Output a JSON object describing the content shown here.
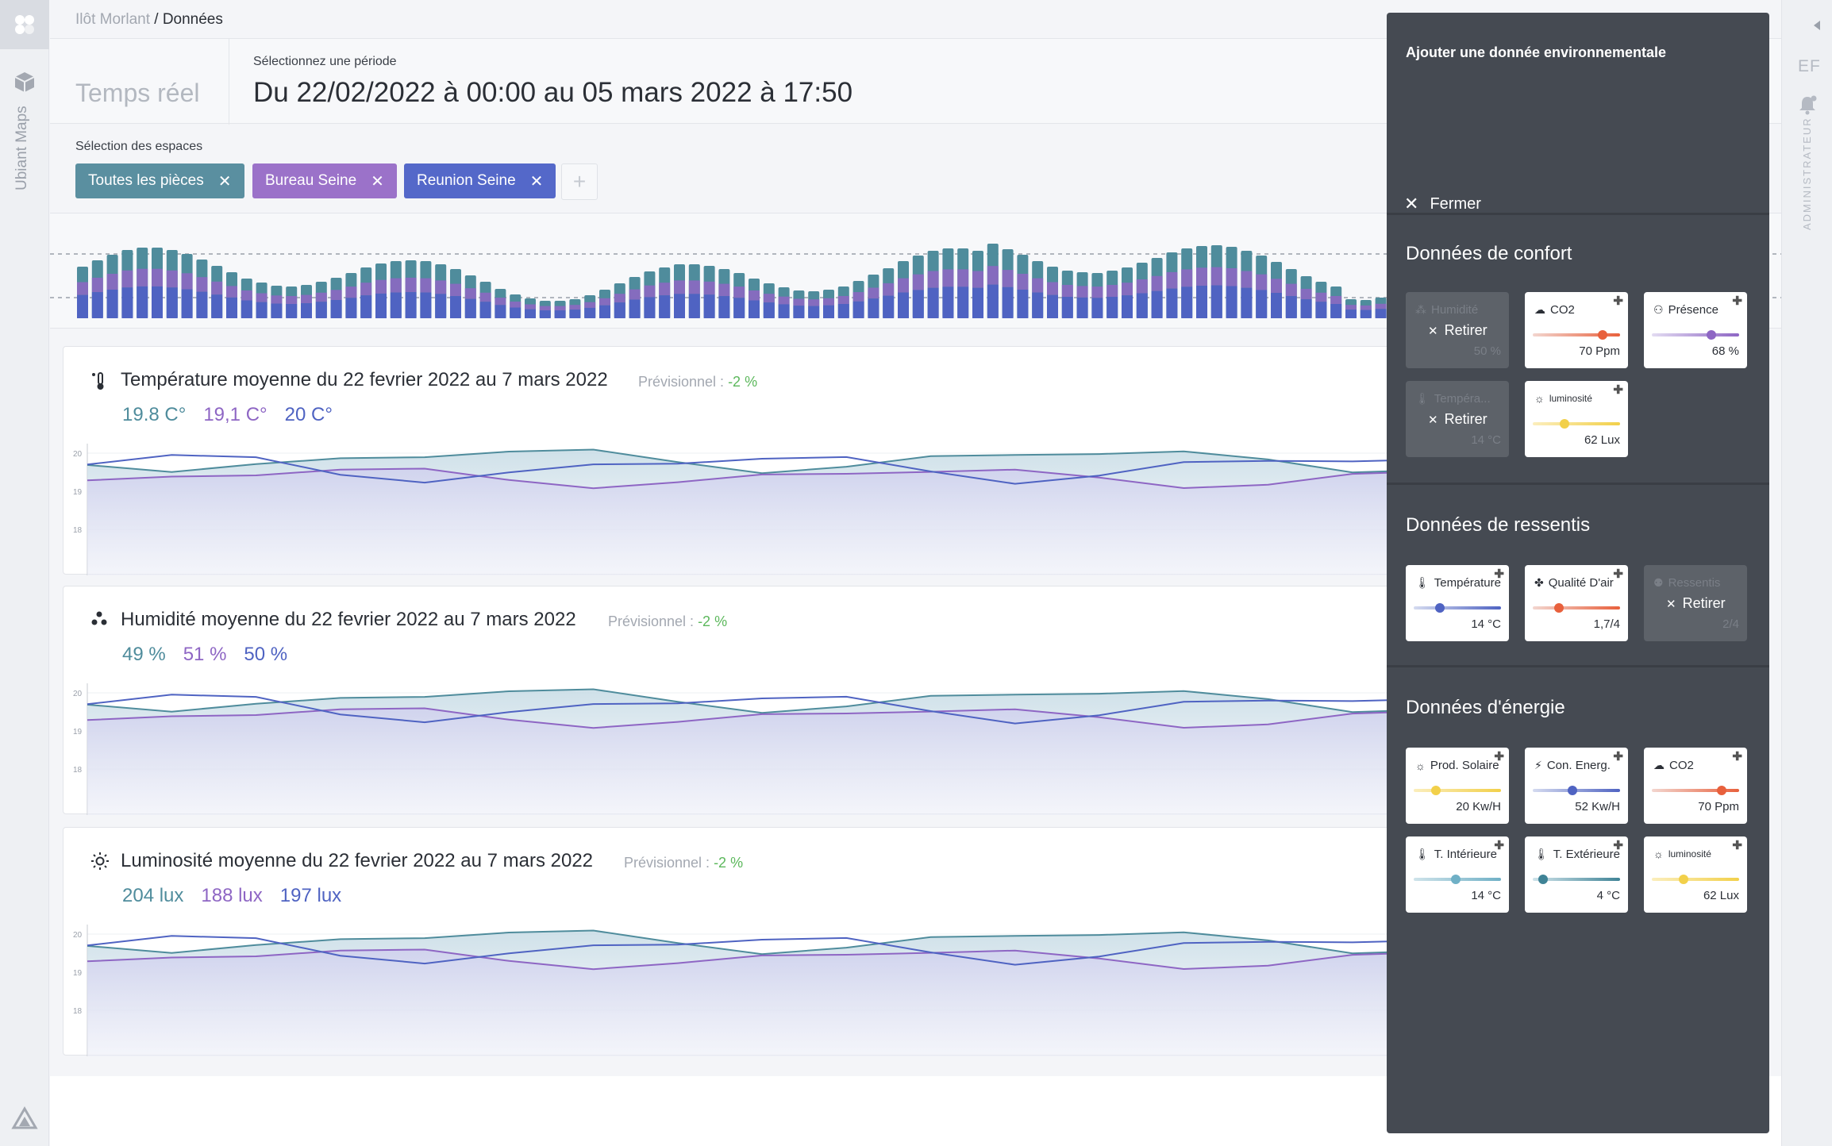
{
  "breadcrumb": {
    "parent": "Ilôt Morlant",
    "current": "/ Données"
  },
  "rail": {
    "app_name": "Ubiant Maps"
  },
  "right_rail": {
    "initials": "EF",
    "role": "ADMINISTRATEUR"
  },
  "header": {
    "realtime_label": "Temps réel",
    "period_label": "Sélectionnez une période",
    "period_value": "Du 22/02/2022 à 00:00 au 05 mars 2022 à 17:50"
  },
  "spaces": {
    "label": "Sélection des espaces",
    "chips": [
      {
        "label": "Toutes les pièces",
        "color": "#5a8fa0"
      },
      {
        "label": "Bureau Seine",
        "color": "#9b72c9"
      },
      {
        "label": "Reunion Seine",
        "color": "#5468c9"
      }
    ],
    "add_symbol": "+"
  },
  "cards": [
    {
      "title": "Température moyenne du 22 fevrier 2022 au 7 mars 2022",
      "forecast_label": "Prévisionnel : ",
      "forecast_pct": "-2 %",
      "icon": "thermometer-icon",
      "values": [
        "19.8 C°",
        "19,1 C°",
        "20 C°"
      ]
    },
    {
      "title": "Humidité moyenne du 22 fevrier 2022 au 7 mars 2022",
      "forecast_label": "Prévisionnel : ",
      "forecast_pct": "-2 %",
      "icon": "humidity-icon",
      "values": [
        "49 %",
        "51 %",
        "50 %"
      ]
    },
    {
      "title": "Luminosité moyenne du 22 fevrier 2022 au 7 mars 2022",
      "forecast_label": "Prévisionnel : ",
      "forecast_pct": "-2 %",
      "icon": "sun-icon",
      "values": [
        "204 lux",
        "188 lux",
        "197 lux"
      ]
    }
  ],
  "chart_axis": {
    "ticks": [
      "20",
      "19",
      "18"
    ]
  },
  "series_colors": {
    "all": "#4f8c9c",
    "bureau": "#8e66c4",
    "reunion": "#4f63c2"
  },
  "panel": {
    "title": "Ajouter une donnée environnementale",
    "close_label": "Fermer",
    "retire_label": "Retirer",
    "sections": [
      {
        "title": "Données de confort",
        "tiles": [
          {
            "label": "Humidité",
            "value": "50 %",
            "state": "off",
            "icon": "humidity-icon"
          },
          {
            "label": "CO2",
            "value": "70 Ppm",
            "state": "on",
            "icon": "cloud-icon",
            "level": 0.8,
            "gradient": "#f3d6cf,#e8603c",
            "dot": "#e8603c"
          },
          {
            "label": "Présence",
            "value": "68 %",
            "state": "on",
            "icon": "people-icon",
            "level": 0.68,
            "gradient": "#e3dcf2,#8e66c4",
            "dot": "#8e66c4"
          },
          {
            "label": "Tempéra...",
            "value": "14 °C",
            "state": "off",
            "icon": "thermometer-icon"
          },
          {
            "label": "luminosité",
            "value": "62 Lux",
            "state": "on",
            "icon": "sun-icon",
            "level": 0.36,
            "gradient": "#fbeebd,#f2d04a",
            "dot": "#f2d04a",
            "small": true
          }
        ]
      },
      {
        "title": "Données de ressentis",
        "tiles": [
          {
            "label": "Température",
            "value": "14 °C",
            "state": "on",
            "icon": "thermometer-icon",
            "level": 0.3,
            "gradient": "#d5dbf0,#4f63c2",
            "dot": "#4f63c2"
          },
          {
            "label": "Qualité D'air",
            "value": "1,7/4",
            "state": "on",
            "icon": "fan-icon",
            "level": 0.3,
            "gradient": "#f3d6cf,#e8603c",
            "dot": "#e8603c"
          },
          {
            "label": "Ressentis",
            "value": "2/4",
            "state": "off",
            "icon": "person-icon"
          }
        ]
      },
      {
        "title": "Données d'énergie",
        "tiles": [
          {
            "label": "Prod. Solaire",
            "value": "20 Kw/H",
            "state": "on",
            "icon": "sun-icon",
            "level": 0.25,
            "gradient": "#fbeebd,#f2d04a",
            "dot": "#f2d04a"
          },
          {
            "label": "Con. Energ.",
            "value": "52 Kw/H",
            "state": "on",
            "icon": "bolt-icon",
            "level": 0.45,
            "gradient": "#d5dbf0,#4f63c2",
            "dot": "#4f63c2"
          },
          {
            "label": "CO2",
            "value": "70 Ppm",
            "state": "on",
            "icon": "cloud-icon",
            "level": 0.8,
            "gradient": "#f3d6cf,#e8603c",
            "dot": "#e8603c"
          },
          {
            "label": "T. Intérieure",
            "value": "14 °C",
            "state": "on",
            "icon": "thermometer-icon",
            "level": 0.48,
            "gradient": "#cfe3ea,#6fb0c6",
            "dot": "#6fb0c6"
          },
          {
            "label": "T. Extérieure",
            "value": "4 °C",
            "state": "on",
            "icon": "thermometer-icon",
            "level": 0.12,
            "gradient": "#cfe3ea,#3f8396",
            "dot": "#3f8396"
          },
          {
            "label": "luminosité",
            "value": "62 Lux",
            "state": "on",
            "icon": "sun-icon",
            "level": 0.36,
            "gradient": "#fbeebd,#f2d04a",
            "dot": "#f2d04a",
            "small": true
          }
        ]
      }
    ]
  }
}
